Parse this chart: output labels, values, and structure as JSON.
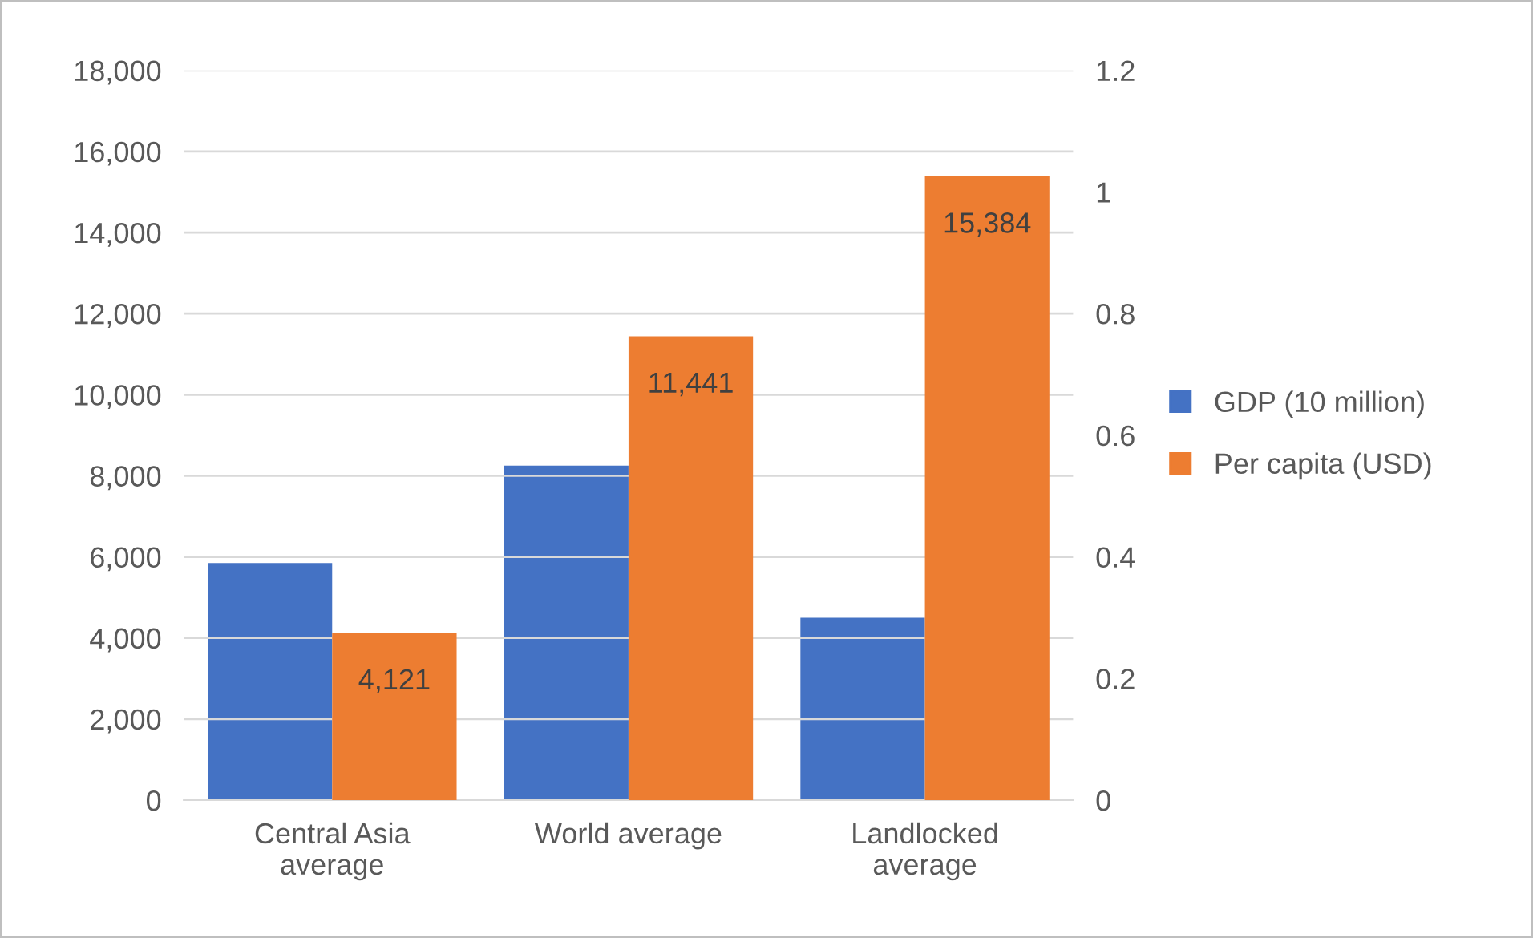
{
  "chart_data": {
    "type": "bar",
    "categories": [
      "Central Asia\naverage",
      "World average",
      "Landlocked\naverage"
    ],
    "series": [
      {
        "name": "GDP (10 million)",
        "color": "#4472c4",
        "values": [
          0.39,
          0.55,
          0.3
        ],
        "axis": "y2"
      },
      {
        "name": "Per capita (USD)",
        "color": "#ed7d31",
        "values": [
          4121,
          11441,
          15384
        ],
        "value_labels": [
          "4,121",
          "11,441",
          "15,384"
        ]
      }
    ],
    "ylim": [
      0,
      18000
    ],
    "yticks": [
      {
        "value": 0,
        "label": "0"
      },
      {
        "value": 2000,
        "label": "2,000"
      },
      {
        "value": 4000,
        "label": "4,000"
      },
      {
        "value": 6000,
        "label": "6,000"
      },
      {
        "value": 8000,
        "label": "8,000"
      },
      {
        "value": 10000,
        "label": "10,000"
      },
      {
        "value": 12000,
        "label": "12,000"
      },
      {
        "value": 14000,
        "label": "14,000"
      },
      {
        "value": 16000,
        "label": "16,000"
      },
      {
        "value": 18000,
        "label": "18,000"
      }
    ],
    "y2lim": [
      0,
      1.2
    ],
    "y2ticks": [
      0,
      0.2,
      0.4,
      0.6,
      0.8,
      1,
      1.2
    ],
    "grid": "y",
    "legend": "right"
  }
}
